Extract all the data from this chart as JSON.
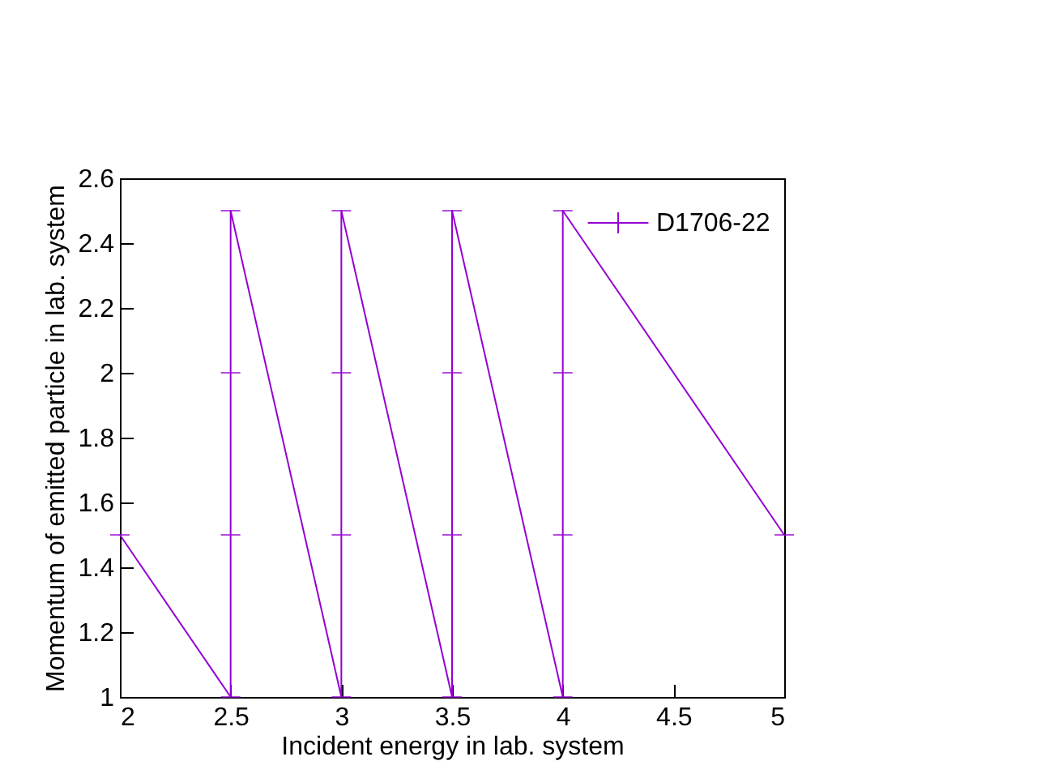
{
  "chart_data": {
    "type": "line",
    "xlabel": "Incident energy in lab. system",
    "ylabel": "Momentum of emitted particle in lab. system",
    "xlim": [
      2,
      5
    ],
    "xticks": [
      2,
      2.5,
      3,
      3.5,
      4,
      4.5,
      5
    ],
    "ylim": [
      1,
      2.6
    ],
    "yticks": [
      1,
      1.2,
      1.4,
      1.6,
      1.8,
      2,
      2.2,
      2.4,
      2.6
    ],
    "grid": false,
    "legend": "top right",
    "marker": "none",
    "series": [
      {
        "name": "D1706-22",
        "color": "#9400d3",
        "x": [
          2,
          2.5,
          2.5,
          2.5,
          2.5,
          3,
          3,
          3,
          3,
          3.5,
          3.5,
          3.5,
          3.5,
          4,
          4,
          4,
          4,
          5
        ],
        "values": [
          1.5,
          1,
          1.5,
          2,
          2.5,
          1,
          1.5,
          2,
          2.5,
          1,
          1.5,
          2,
          2.5,
          1,
          1.5,
          2,
          2.5,
          1.5
        ],
        "errors": [
          0,
          0,
          0,
          0,
          0,
          0,
          0,
          0,
          0,
          0,
          0,
          0,
          0,
          0,
          0,
          0,
          0,
          0
        ]
      }
    ]
  }
}
